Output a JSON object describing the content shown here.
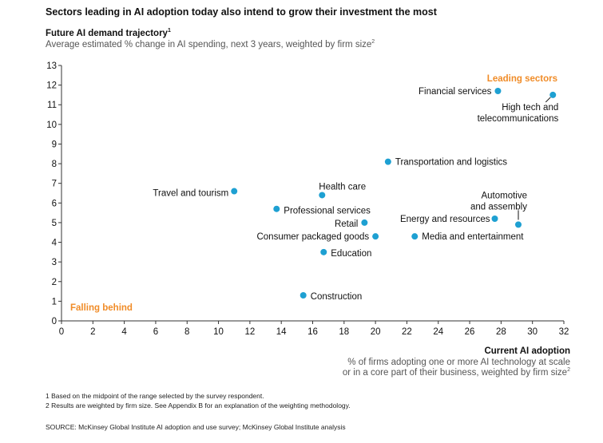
{
  "title": "Sectors leading in AI adoption today also intend to grow their investment the most",
  "y_axis": {
    "title": "Future AI demand trajectory",
    "title_sup": "1",
    "subtitle": "Average estimated % change in AI spending, next 3 years, weighted by firm size",
    "subtitle_sup": "2"
  },
  "x_axis": {
    "title": "Current AI adoption",
    "subtitle_line1": "% of firms adopting one or more AI technology at scale",
    "subtitle_line2": "or in a core part of their business, weighted by firm size",
    "subtitle_sup": "2"
  },
  "footnotes": [
    "1  Based on the midpoint of the range selected by the survey respondent.",
    "2  Results are weighted by firm size. See Appendix B for an explanation of the weighting methodology."
  ],
  "source": "SOURCE:  McKinsey Global Institute AI adoption and use survey; McKinsey Global Institute analysis",
  "colors": {
    "point": "#1ea0d2",
    "annotation": "#f08c28",
    "axis": "#333333"
  },
  "chart_data": {
    "type": "scatter",
    "title": "Sectors leading in AI adoption today also intend to grow their investment the most",
    "xlabel": "Current AI adoption",
    "ylabel": "Future AI demand trajectory",
    "xlim": [
      0,
      32
    ],
    "ylim": [
      0,
      13
    ],
    "xticks": [
      0,
      2,
      4,
      6,
      8,
      10,
      12,
      14,
      16,
      18,
      20,
      22,
      24,
      26,
      28,
      30,
      32
    ],
    "yticks": [
      0,
      1,
      2,
      3,
      4,
      5,
      6,
      7,
      8,
      9,
      10,
      11,
      12,
      13
    ],
    "grid": false,
    "annotations": [
      {
        "text": "Leading sectors",
        "position": "top-right"
      },
      {
        "text": "Falling behind",
        "position": "bottom-left"
      }
    ],
    "points": [
      {
        "label": "Financial services",
        "x": 27.8,
        "y": 11.7
      },
      {
        "label": "High tech and telecommunications",
        "x": 31.3,
        "y": 11.5
      },
      {
        "label": "Transportation and logistics",
        "x": 20.8,
        "y": 8.1
      },
      {
        "label": "Travel and tourism",
        "x": 11.0,
        "y": 6.6
      },
      {
        "label": "Health care",
        "x": 16.6,
        "y": 6.4
      },
      {
        "label": "Professional services",
        "x": 13.7,
        "y": 5.7
      },
      {
        "label": "Retail",
        "x": 19.3,
        "y": 5.0
      },
      {
        "label": "Energy and resources",
        "x": 27.6,
        "y": 5.2
      },
      {
        "label": "Automotive and assembly",
        "x": 29.1,
        "y": 4.9
      },
      {
        "label": "Consumer packaged goods",
        "x": 20.0,
        "y": 4.3
      },
      {
        "label": "Media and entertainment",
        "x": 22.5,
        "y": 4.3
      },
      {
        "label": "Education",
        "x": 16.7,
        "y": 3.5
      },
      {
        "label": "Construction",
        "x": 15.4,
        "y": 1.3
      }
    ]
  }
}
